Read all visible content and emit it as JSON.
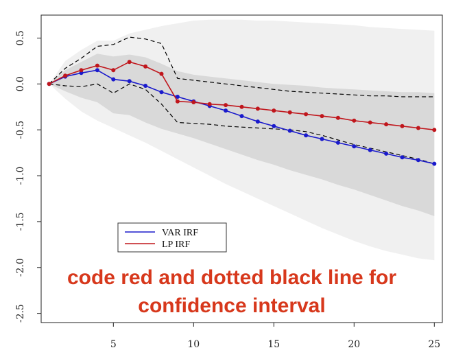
{
  "chart_data": {
    "type": "line",
    "x": [
      1,
      2,
      3,
      4,
      5,
      6,
      7,
      8,
      9,
      10,
      11,
      12,
      13,
      14,
      15,
      16,
      17,
      18,
      19,
      20,
      21,
      22,
      23,
      24,
      25
    ],
    "xlim": [
      0.5,
      25.5
    ],
    "ylim": [
      -2.6,
      0.75
    ],
    "x_ticks": [
      5,
      10,
      15,
      20,
      25
    ],
    "y_ticks": [
      0.5,
      0.0,
      -0.5,
      -1.0,
      -1.5,
      -2.0,
      -2.5
    ],
    "x_tick_labels": [
      "5",
      "10",
      "15",
      "20",
      "25"
    ],
    "y_tick_labels": [
      "0.5",
      "0.0",
      "-0.5",
      "-1.0",
      "-1.5",
      "-2.0",
      "-2.5"
    ],
    "grid": false,
    "legend_position": "bottom-left",
    "series": [
      {
        "name": "VAR IRF",
        "color": "#1a1acc",
        "style": "solid-with-points",
        "values": [
          0.0,
          0.08,
          0.12,
          0.15,
          0.05,
          0.03,
          -0.02,
          -0.09,
          -0.14,
          -0.19,
          -0.24,
          -0.29,
          -0.35,
          -0.41,
          -0.46,
          -0.51,
          -0.56,
          -0.6,
          -0.64,
          -0.68,
          -0.72,
          -0.76,
          -0.8,
          -0.83,
          -0.87
        ]
      },
      {
        "name": "LP IRF",
        "color": "#c0161c",
        "style": "solid-with-points",
        "values": [
          0.0,
          0.09,
          0.15,
          0.2,
          0.15,
          0.24,
          0.19,
          0.11,
          -0.19,
          -0.2,
          -0.22,
          -0.23,
          -0.25,
          -0.27,
          -0.29,
          -0.31,
          -0.33,
          -0.35,
          -0.37,
          -0.4,
          -0.42,
          -0.44,
          -0.46,
          -0.48,
          -0.5
        ]
      }
    ],
    "dashed_bands": {
      "color": "#000000",
      "upper": [
        0.0,
        0.17,
        0.28,
        0.41,
        0.43,
        0.51,
        0.49,
        0.44,
        0.06,
        0.04,
        0.02,
        0.0,
        -0.02,
        -0.04,
        -0.06,
        -0.08,
        -0.09,
        -0.1,
        -0.11,
        -0.12,
        -0.13,
        -0.13,
        -0.14,
        -0.14,
        -0.14
      ],
      "lower": [
        0.0,
        -0.02,
        -0.03,
        0.0,
        -0.1,
        0.0,
        -0.06,
        -0.22,
        -0.42,
        -0.43,
        -0.44,
        -0.46,
        -0.47,
        -0.48,
        -0.49,
        -0.5,
        -0.52,
        -0.56,
        -0.61,
        -0.66,
        -0.7,
        -0.74,
        -0.78,
        -0.82,
        -0.87
      ]
    },
    "inner_band": {
      "color": "#d9d9d9",
      "upper": [
        0.0,
        0.15,
        0.24,
        0.33,
        0.3,
        0.32,
        0.29,
        0.22,
        0.14,
        0.1,
        0.08,
        0.06,
        0.04,
        0.02,
        0.0,
        -0.01,
        -0.02,
        -0.04,
        -0.05,
        -0.06,
        -0.07,
        -0.08,
        -0.09,
        -0.09,
        -0.1
      ],
      "lower": [
        0.0,
        -0.08,
        -0.15,
        -0.2,
        -0.32,
        -0.34,
        -0.42,
        -0.49,
        -0.54,
        -0.59,
        -0.65,
        -0.71,
        -0.77,
        -0.83,
        -0.88,
        -0.94,
        -0.99,
        -1.04,
        -1.1,
        -1.15,
        -1.21,
        -1.27,
        -1.33,
        -1.38,
        -1.44
      ]
    },
    "outer_band": {
      "color": "#f0f0f0",
      "upper": [
        0.0,
        0.25,
        0.37,
        0.47,
        0.47,
        0.55,
        0.59,
        0.63,
        0.66,
        0.69,
        0.7,
        0.7,
        0.7,
        0.69,
        0.69,
        0.68,
        0.67,
        0.66,
        0.65,
        0.64,
        0.62,
        0.61,
        0.6,
        0.59,
        0.58
      ],
      "lower": [
        0.0,
        -0.16,
        -0.3,
        -0.4,
        -0.48,
        -0.56,
        -0.64,
        -0.73,
        -0.82,
        -0.91,
        -1.0,
        -1.09,
        -1.17,
        -1.25,
        -1.33,
        -1.41,
        -1.49,
        -1.57,
        -1.64,
        -1.71,
        -1.77,
        -1.82,
        -1.86,
        -1.9,
        -1.92
      ]
    }
  },
  "legend": {
    "items": [
      {
        "label": "VAR IRF",
        "color": "#1a1acc"
      },
      {
        "label": "LP IRF",
        "color": "#c0161c"
      }
    ]
  },
  "overlay": {
    "line1": "code red and dotted black line for",
    "line2": "confidence interval",
    "color": "#d7381c"
  }
}
